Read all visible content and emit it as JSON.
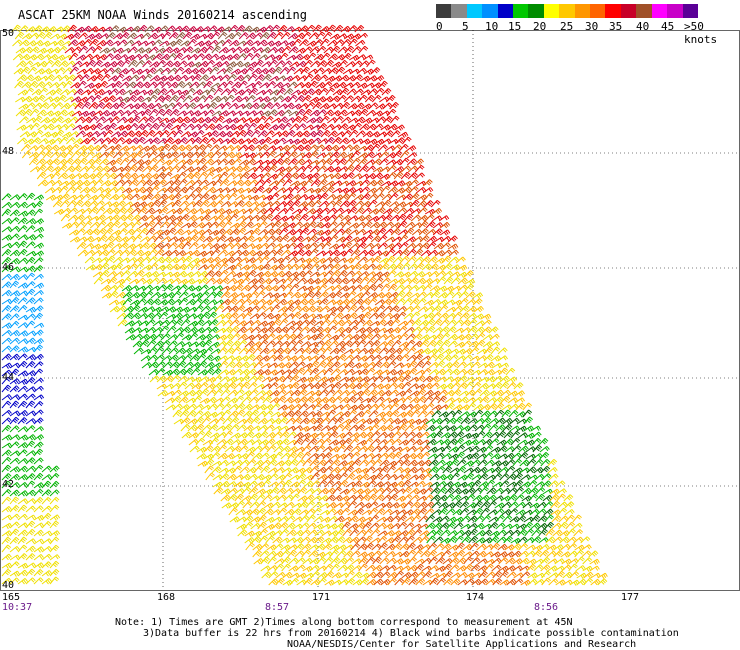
{
  "title": "ASCAT 25KM NOAA Winds 20160214 ascending",
  "scale": {
    "colors": [
      "#3c3c3c",
      "#8a8a8a",
      "#00c8ff",
      "#0090ff",
      "#0000c8",
      "#00c800",
      "#008c00",
      "#ffff00",
      "#ffc800",
      "#ff9600",
      "#ff6400",
      "#ff0000",
      "#c80028",
      "#a05028",
      "#ff00ff",
      "#c800c8",
      "#5a0096"
    ],
    "labels": [
      "0",
      "5",
      "10",
      "15",
      "20",
      "25",
      "30",
      "35",
      "40",
      "45",
      ">50 knots"
    ]
  },
  "lat_labels": [
    "50",
    "48",
    "46",
    "44",
    "42",
    "40"
  ],
  "lon_labels": [
    "165",
    "168",
    "171",
    "174",
    "177"
  ],
  "time_labels": [
    "10:37",
    "8:57",
    "8:56"
  ],
  "notes": [
    "Note: 1) Times are GMT 2)Times along bottom correspond to measurement at 45N",
    "3)Data buffer is 22 hrs from 20160214 4) Black wind barbs indicate possible contamination",
    "NOAA/NESDIS/Center for Satellite Applications and Research"
  ],
  "barb_colors": {
    "green": "#00b400",
    "darkgreen": "#006400",
    "blue": "#0000c8",
    "cyan": "#00a0ff",
    "yellow": "#f0e000",
    "gold": "#ffc800",
    "orange": "#ff8c00",
    "darkorange": "#e05000",
    "red": "#e60000",
    "crimson": "#c8003c",
    "brown": "#8c5a3c"
  }
}
